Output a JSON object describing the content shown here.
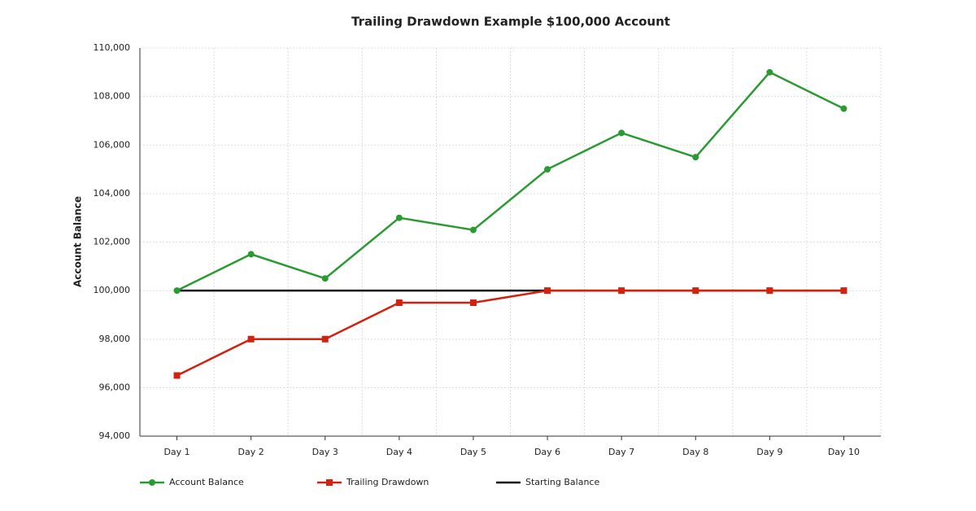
{
  "chart_data": {
    "type": "line",
    "title": "Trailing Drawdown Example $100,000 Account",
    "y_label": "Account Balance",
    "categories": [
      "Day 1",
      "Day 2",
      "Day 3",
      "Day 4",
      "Day 5",
      "Day 6",
      "Day 7",
      "Day 8",
      "Day 9",
      "Day 10"
    ],
    "series": [
      {
        "name": "Account Balance",
        "color": "#2a9a32",
        "marker": "circle",
        "values": [
          100000,
          101500,
          100500,
          103000,
          102500,
          105000,
          106500,
          105500,
          109000,
          107500
        ]
      },
      {
        "name": "Trailing Drawdown",
        "color": "#d4200f",
        "marker": "square",
        "values": [
          96500,
          98000,
          98000,
          99500,
          99500,
          100000,
          100000,
          100000,
          100000,
          100000
        ]
      },
      {
        "name": "Starting Balance",
        "color": "#111111",
        "marker": "none",
        "values": [
          100000,
          100000,
          100000,
          100000,
          100000,
          100000,
          100000,
          100000,
          100000,
          100000
        ]
      }
    ],
    "ylim": [
      94000,
      110000
    ],
    "yticks": [
      {
        "value": 94000,
        "label": "94,000"
      },
      {
        "value": 96000,
        "label": "96,000"
      },
      {
        "value": 98000,
        "label": "98,000"
      },
      {
        "value": 100000,
        "label": "100,000"
      },
      {
        "value": 102000,
        "label": "102,000"
      },
      {
        "value": 104000,
        "label": "104,000"
      },
      {
        "value": 106000,
        "label": "106,000"
      },
      {
        "value": 108000,
        "label": "108,000"
      },
      {
        "value": 110000,
        "label": "110,000"
      }
    ],
    "grid": true,
    "legend": "bottom-left"
  }
}
